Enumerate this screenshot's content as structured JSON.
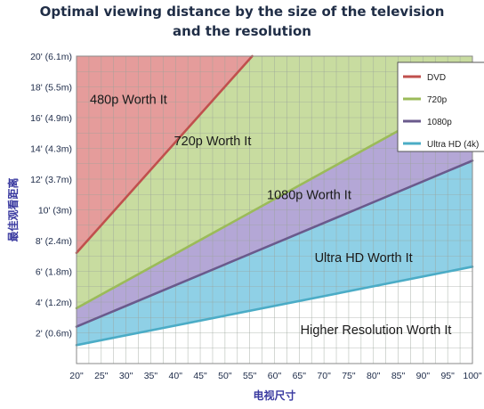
{
  "chart_data": {
    "type": "line",
    "title": "Optimal viewing distance by the size of the television and the resolution",
    "title_lines": [
      "Optimal viewing distance by the size of the television",
      "and the resolution"
    ],
    "xlabel": "电视尺寸",
    "ylabel": "最佳观看距离",
    "x_ticks": [
      20,
      25,
      30,
      35,
      40,
      45,
      50,
      55,
      60,
      65,
      70,
      75,
      80,
      85,
      90,
      95,
      100
    ],
    "x_tick_labels": [
      "20\"",
      "25\"",
      "30\"",
      "35\"",
      "40\"",
      "45\"",
      "50\"",
      "55\"",
      "60\"",
      "65\"",
      "70\"",
      "75\"",
      "80\"",
      "85\"",
      "90\"",
      "95\"",
      "100\""
    ],
    "xlim": [
      20,
      100
    ],
    "y_ticks": [
      2,
      4,
      6,
      8,
      10,
      12,
      14,
      16,
      18,
      20
    ],
    "y_tick_labels": [
      "2' (0.6m)",
      "4' (1.2m)",
      "6' (1.8m)",
      "8' (2.4m)",
      "10' (3m)",
      "12' (3.7m)",
      "14' (4.3m)",
      "16' (4.9m)",
      "18' (5.5m)",
      "20' (6.1m)"
    ],
    "ylim": [
      0,
      20
    ],
    "grid": true,
    "legend_position": "top-right",
    "series": [
      {
        "name": "DVD",
        "color": "#c0504d",
        "x": [
          20,
          55.5
        ],
        "y": [
          7.2,
          20
        ]
      },
      {
        "name": "720p",
        "color": "#9bbb59",
        "x": [
          20,
          100
        ],
        "y": [
          3.6,
          17.8
        ]
      },
      {
        "name": "1080p",
        "color": "#6a5a8c",
        "x": [
          20,
          100
        ],
        "y": [
          2.4,
          13.2
        ]
      },
      {
        "name": "Ultra HD (4k)",
        "color": "#4bacc6",
        "x": [
          20,
          100
        ],
        "y": [
          1.2,
          6.3
        ]
      }
    ],
    "regions": [
      {
        "label": "480p Worth It",
        "fill": "#e59c9b",
        "x": 30.5,
        "y": 16.9
      },
      {
        "label": "720p Worth It",
        "fill": "#c8dca0",
        "x": 47.5,
        "y": 14.2
      },
      {
        "label": "1080p Worth It",
        "fill": "#b4a7d6",
        "x": 67,
        "y": 10.7
      },
      {
        "label": "Ultra HD Worth It",
        "fill": "#8fd0e6",
        "x": 78,
        "y": 6.6
      },
      {
        "label": "Higher Resolution Worth It",
        "fill": "#ffffff",
        "x": 80.5,
        "y": 1.9
      }
    ]
  }
}
